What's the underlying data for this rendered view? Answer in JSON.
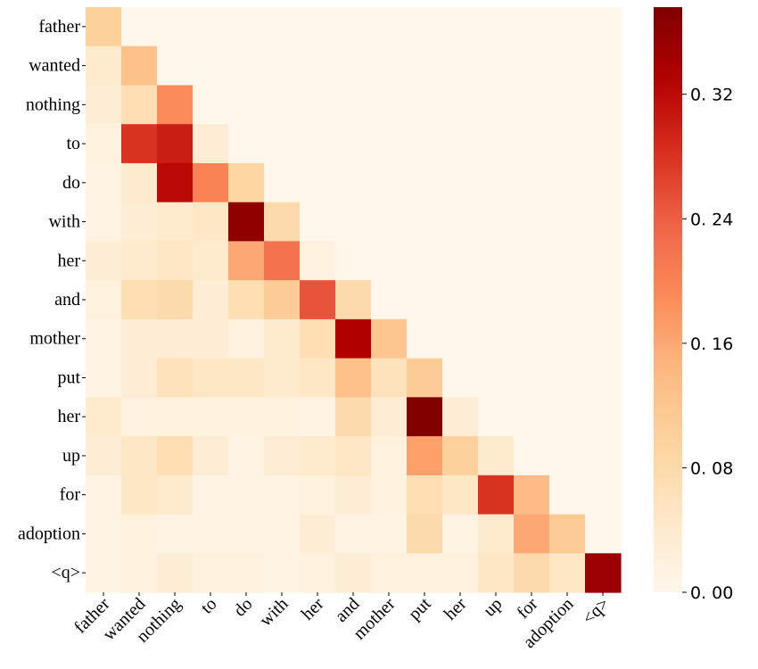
{
  "chart_data": {
    "type": "heatmap",
    "title": "",
    "xlabel": "",
    "ylabel": "",
    "x_labels": [
      "father",
      "wanted",
      "nothing",
      "to",
      "do",
      "with",
      "her",
      "and",
      "mother",
      "put",
      "her",
      "up",
      "for",
      "adoption",
      "<q>"
    ],
    "y_labels": [
      "father",
      "wanted",
      "nothing",
      "to",
      "do",
      "with",
      "her",
      "and",
      "mother",
      "put",
      "her",
      "up",
      "for",
      "adoption",
      "<q>"
    ],
    "colormap": "OrRd",
    "color_stops": [
      "#fff7ec",
      "#fee8c8",
      "#fdd49e",
      "#fdbb84",
      "#fc8d59",
      "#ef6548",
      "#d7301f",
      "#b30000",
      "#7f0000"
    ],
    "clim": [
      0,
      0.376
    ],
    "colorbar_ticks": [
      0,
      0.08,
      0.16,
      0.24,
      0.32
    ],
    "colorbar_tick_labels": [
      "0. 00",
      "0. 08",
      "0. 16",
      "0. 24",
      "0. 32"
    ],
    "values": [
      [
        0.1
      ],
      [
        0.04,
        0.13
      ],
      [
        0.03,
        0.07,
        0.19
      ],
      [
        0.02,
        0.28,
        0.3,
        0.03
      ],
      [
        0.01,
        0.04,
        0.32,
        0.2,
        0.09
      ],
      [
        0.01,
        0.03,
        0.04,
        0.05,
        0.36,
        0.08
      ],
      [
        0.03,
        0.04,
        0.05,
        0.04,
        0.16,
        0.22,
        0.02
      ],
      [
        0.02,
        0.07,
        0.08,
        0.03,
        0.07,
        0.11,
        0.25,
        0.08
      ],
      [
        0.01,
        0.03,
        0.03,
        0.03,
        0.02,
        0.04,
        0.07,
        0.33,
        0.12
      ],
      [
        0.01,
        0.03,
        0.06,
        0.05,
        0.05,
        0.04,
        0.05,
        0.13,
        0.06,
        0.11
      ],
      [
        0.04,
        0.02,
        0.02,
        0.02,
        0.02,
        0.02,
        0.01,
        0.08,
        0.03,
        0.375,
        0.03
      ],
      [
        0.03,
        0.05,
        0.07,
        0.03,
        0.01,
        0.03,
        0.04,
        0.05,
        0.02,
        0.17,
        0.1,
        0.04
      ],
      [
        0.01,
        0.05,
        0.04,
        0.01,
        0.01,
        0.01,
        0.02,
        0.03,
        0.02,
        0.07,
        0.05,
        0.28,
        0.14
      ],
      [
        0.01,
        0.02,
        0.01,
        0.01,
        0.01,
        0.01,
        0.03,
        0.01,
        0.01,
        0.08,
        0.01,
        0.04,
        0.16,
        0.11
      ],
      [
        0.01,
        0.02,
        0.03,
        0.02,
        0.02,
        0.01,
        0.02,
        0.03,
        0.02,
        0.02,
        0.02,
        0.05,
        0.08,
        0.05,
        0.35
      ]
    ],
    "upper_triangle_value": 0
  }
}
